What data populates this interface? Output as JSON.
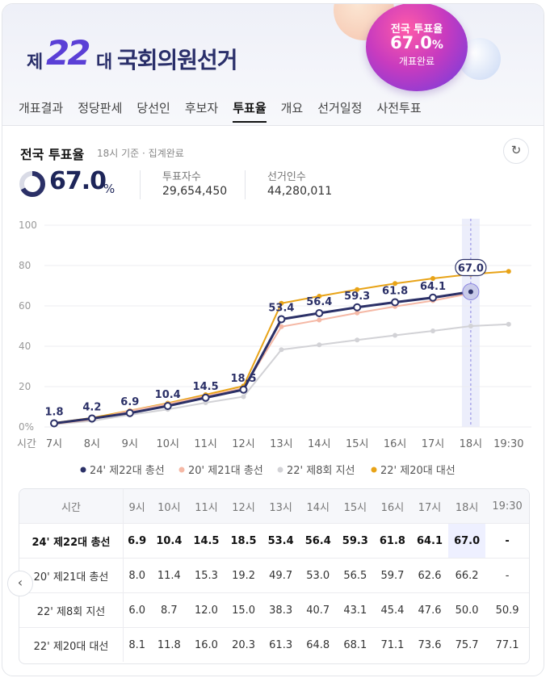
{
  "header": {
    "logo_prefix": "제",
    "logo_num": "22",
    "logo_suffix": "대",
    "logo_rest": "국회의원선거",
    "bubble_title": "전국 투표율",
    "bubble_value": "67.0",
    "bubble_pct": "%",
    "bubble_status": "개표완료"
  },
  "tabs": [
    "개표결과",
    "정당판세",
    "당선인",
    "후보자",
    "투표율",
    "개요",
    "선거일정",
    "사전투표"
  ],
  "active_tab": 4,
  "summary": {
    "title": "전국 투표율",
    "subtitle": "18시 기준 · 집계완료",
    "value": "67.0",
    "unit": "%",
    "turnout_fraction": 0.67,
    "voters_label": "투표자수",
    "voters_value": "29,654,450",
    "electors_label": "선거인수",
    "electors_value": "44,280,011"
  },
  "colors": {
    "s22": "#2b3067",
    "s21": "#f5b8a5",
    "s8": "#d2d2d6",
    "s20": "#e8a317",
    "accent": "#6b5fd8"
  },
  "chart_data": {
    "type": "line",
    "x_axis_title": "시간",
    "categories": [
      "7시",
      "8시",
      "9시",
      "10시",
      "11시",
      "12시",
      "13시",
      "14시",
      "15시",
      "16시",
      "17시",
      "18시",
      "19:30"
    ],
    "ylim": [
      0,
      100
    ],
    "yticks": [
      "0%",
      "20",
      "40",
      "60",
      "80",
      "100"
    ],
    "yticks_values": [
      0,
      20,
      40,
      60,
      80,
      100
    ],
    "grid": true,
    "legend_position": "bottom",
    "highlight_category": "18시",
    "highlight_label": "67.0",
    "series": [
      {
        "name": "24' 제22대 총선",
        "color": "#2b3067",
        "values": [
          1.8,
          4.2,
          6.9,
          10.4,
          14.5,
          18.5,
          53.4,
          56.4,
          59.3,
          61.8,
          64.1,
          67.0,
          null
        ],
        "labeled": true
      },
      {
        "name": "20' 제21대 총선",
        "color": "#f5b8a5",
        "values": [
          1.5,
          3.7,
          8.0,
          11.4,
          15.3,
          19.2,
          49.7,
          53.0,
          56.5,
          59.7,
          62.6,
          66.2,
          null
        ],
        "labeled": false
      },
      {
        "name": "22' 제8회 지선",
        "color": "#d2d2d6",
        "values": [
          1.3,
          3.0,
          6.0,
          8.7,
          12.0,
          15.0,
          38.3,
          40.7,
          43.1,
          45.4,
          47.6,
          50.0,
          50.9
        ],
        "labeled": false
      },
      {
        "name": "22' 제20대 대선",
        "color": "#e8a317",
        "values": [
          2.0,
          4.5,
          8.1,
          11.8,
          16.0,
          20.3,
          61.3,
          64.8,
          68.1,
          71.1,
          73.6,
          75.7,
          77.1
        ],
        "labeled": false
      }
    ]
  },
  "table": {
    "header_label": "시간",
    "columns": [
      "9시",
      "10시",
      "11시",
      "12시",
      "13시",
      "14시",
      "15시",
      "16시",
      "17시",
      "18시",
      "19:30"
    ],
    "rows": [
      {
        "label": "24' 제22대 총선",
        "values": [
          "6.9",
          "10.4",
          "14.5",
          "18.5",
          "53.4",
          "56.4",
          "59.3",
          "61.8",
          "64.1",
          "67.0",
          "-"
        ]
      },
      {
        "label": "20' 제21대 총선",
        "values": [
          "8.0",
          "11.4",
          "15.3",
          "19.2",
          "49.7",
          "53.0",
          "56.5",
          "59.7",
          "62.6",
          "66.2",
          "-"
        ]
      },
      {
        "label": "22' 제8회 지선",
        "values": [
          "6.0",
          "8.7",
          "12.0",
          "15.0",
          "38.3",
          "40.7",
          "43.1",
          "45.4",
          "47.6",
          "50.0",
          "50.9"
        ]
      },
      {
        "label": "22' 제20대 대선",
        "values": [
          "8.1",
          "11.8",
          "16.0",
          "20.3",
          "61.3",
          "64.8",
          "68.1",
          "71.1",
          "73.6",
          "75.7",
          "77.1"
        ]
      }
    ]
  },
  "icons": {
    "refresh": "refresh-icon",
    "prev": "chevron-left-icon"
  },
  "refresh_glyph": "↻",
  "prev_glyph": "‹"
}
